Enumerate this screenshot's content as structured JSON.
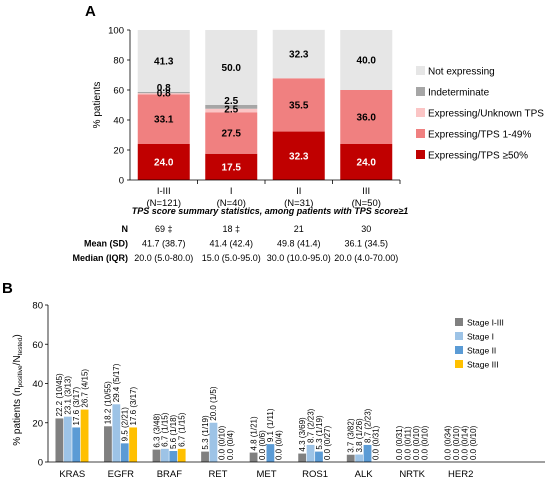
{
  "panelA": {
    "label": "A",
    "ylabel": "% patients",
    "yticks": [
      "0",
      "20",
      "40",
      "60",
      "80",
      "100"
    ],
    "legend": [
      {
        "name": "Not expressing",
        "color": "#e6e6e6"
      },
      {
        "name": "Indeterminate",
        "color": "#a6a6a6"
      },
      {
        "name": "Expressing/Unknown TPS",
        "color": "#fbc5c5"
      },
      {
        "name": "Expressing/TPS 1-49%",
        "color": "#f08080"
      },
      {
        "name": "Expressing/TPS ≥50%",
        "color": "#c00000"
      }
    ],
    "stats_title": "TPS score summary statistics, among patients with TPS score≥1",
    "stats_rows": [
      {
        "label": "N",
        "values": [
          "69 ‡",
          "18 ‡",
          "21",
          "30"
        ]
      },
      {
        "label": "Mean (SD)",
        "values": [
          "41.7 (38.7)",
          "41.4 (42.4)",
          "49.8 (41.4)",
          "36.1 (34.5)"
        ]
      },
      {
        "label": "Median (IQR)",
        "values": [
          "20.0 (5.0-80.0)",
          "15.0 (5.0-95.0)",
          "30.0 (10.0-95.0)",
          "20.0 (4.0-70.00)"
        ]
      }
    ]
  },
  "panelB": {
    "label": "B",
    "ylabel_main": "% patients (n",
    "ylabel_sub1": "positive",
    "ylabel_mid": "/N",
    "ylabel_sub2": "tested",
    "ylabel_end": ")",
    "yticks": [
      "0",
      "20",
      "40",
      "60",
      "80"
    ],
    "legend": [
      {
        "name": "Stage I-III",
        "color": "#808080"
      },
      {
        "name": "Stage I",
        "color": "#9dc3e6"
      },
      {
        "name": "Stage II",
        "color": "#5b9bd5"
      },
      {
        "name": "Stage III",
        "color": "#ffc000"
      }
    ]
  },
  "chart_data": [
    {
      "type": "bar",
      "stacked": true,
      "categories": [
        "I-III\n(N=121)",
        "I\n(N=40)",
        "II\n(N=31)",
        "III\n(N=50)"
      ],
      "category_lines": [
        [
          "I-III",
          "(N=121)"
        ],
        [
          "I",
          "(N=40)"
        ],
        [
          "II",
          "(N=31)"
        ],
        [
          "III",
          "(N=50)"
        ]
      ],
      "series": [
        {
          "name": "Expressing/TPS ≥50%",
          "values": [
            24.0,
            17.5,
            32.3,
            24.0
          ],
          "labels": [
            "24.0",
            "17.5",
            "32.3",
            "24.0"
          ],
          "color": "#c00000"
        },
        {
          "name": "Expressing/TPS 1-49%",
          "values": [
            33.1,
            27.5,
            35.5,
            36.0
          ],
          "labels": [
            "33.1",
            "27.5",
            "35.5",
            "36.0"
          ],
          "color": "#f08080"
        },
        {
          "name": "Expressing/Unknown TPS",
          "values": [
            0.8,
            2.5,
            0,
            0
          ],
          "labels": [
            "0.8",
            "2.5",
            "",
            ""
          ],
          "color": "#fbc5c5"
        },
        {
          "name": "Indeterminate",
          "values": [
            0.8,
            2.5,
            0,
            0
          ],
          "labels": [
            "0.8",
            "2.5",
            "",
            ""
          ],
          "color": "#a6a6a6"
        },
        {
          "name": "Not expressing",
          "values": [
            41.3,
            50.0,
            32.3,
            40.0
          ],
          "labels": [
            "41.3",
            "50.0",
            "32.3",
            "40.0"
          ],
          "color": "#e6e6e6"
        }
      ],
      "ylabel": "% patients",
      "ylim": [
        0,
        100
      ],
      "grid": false,
      "legend": "right"
    },
    {
      "type": "bar",
      "categories": [
        "KRAS",
        "EGFR",
        "BRAF",
        "RET",
        "MET",
        "ROS1",
        "ALK",
        "NRTK",
        "HER2"
      ],
      "series": [
        {
          "name": "Stage I-III",
          "color": "#808080",
          "values": [
            22.2,
            18.2,
            6.3,
            5.3,
            4.8,
            4.3,
            3.7,
            0.0,
            0.0
          ],
          "labels": [
            "22.2 (10/45)",
            "18.2 (10/55)",
            "6.3 (3/48)",
            "5.3 (1/19)",
            "4.8 (1/21)",
            "4.3 (3/69)",
            "3.7 (3/82)",
            "0.0 (0/31)",
            "0.0 (0/34)"
          ]
        },
        {
          "name": "Stage I",
          "color": "#9dc3e6",
          "values": [
            23.1,
            29.4,
            6.7,
            20.0,
            0.0,
            8.7,
            3.8,
            0.0,
            0.0
          ],
          "labels": [
            "23.1 (3/13)",
            "29.4 (5/17)",
            "6.7 (1/15)",
            "20.0 (1/5)",
            "0.0 (0/6)",
            "8.7 (2/23)",
            "3.8 (1/26)",
            "0.0 (0/11)",
            "0.0 (0/10)"
          ]
        },
        {
          "name": "Stage II",
          "color": "#5b9bd5",
          "values": [
            17.6,
            9.5,
            5.6,
            0.0,
            9.1,
            5.3,
            8.7,
            0.0,
            0.0
          ],
          "labels": [
            "17.6 (3/17)",
            "9.5 (2/21)",
            "5.6 (1/18)",
            "0.0 (0/10)",
            "9.1 (1/11)",
            "5.3 (1/19)",
            "8.7 (2/23)",
            "0.0 (0/10)",
            "0.0 (0/14)"
          ]
        },
        {
          "name": "Stage III",
          "color": "#ffc000",
          "values": [
            26.7,
            17.6,
            6.7,
            0.0,
            0.0,
            0.0,
            0.0,
            0.0,
            0.0
          ],
          "labels": [
            "26.7 (4/15)",
            "17.6 (3/17)",
            "6.7 (1/15)",
            "0.0 (0/4)",
            "0.0 (0/4)",
            "0.0 (0/27)",
            "0.0 (0/31)",
            "0.0 (0/10)",
            "0.0 (0/10)"
          ]
        }
      ],
      "ylabel": "% patients (npositive/Ntested)",
      "ylim": [
        0,
        80
      ],
      "grid": false,
      "legend": "top-right"
    }
  ]
}
